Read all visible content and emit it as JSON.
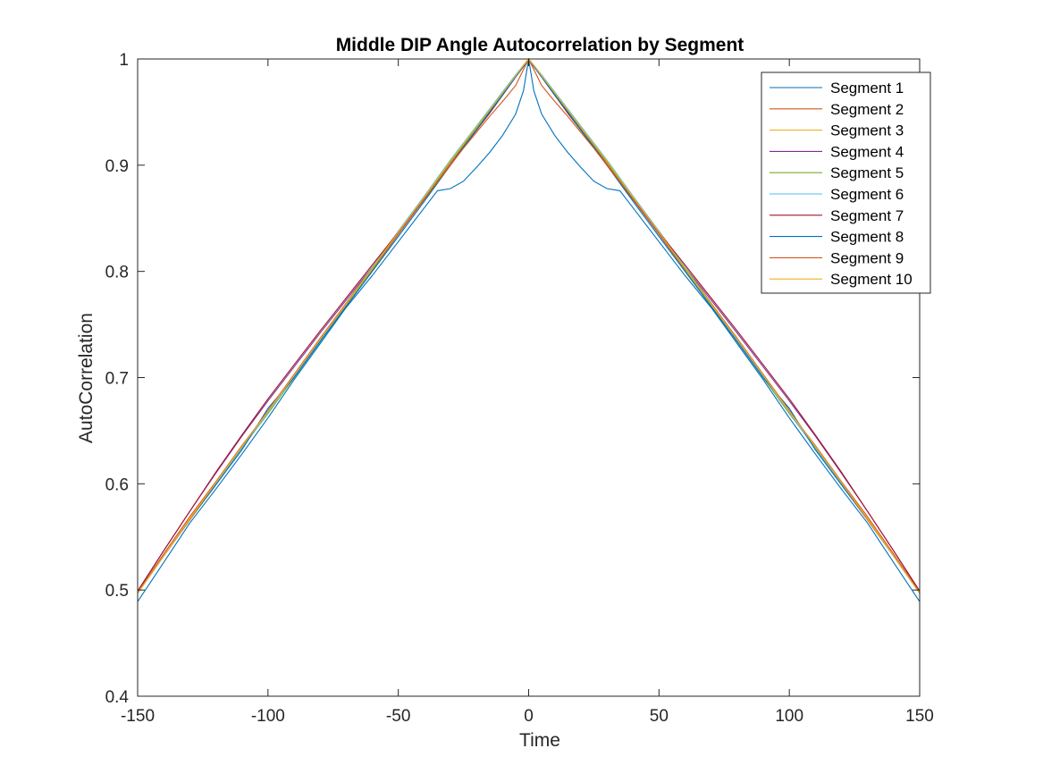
{
  "chart_data": {
    "type": "line",
    "title": "Middle DIP Angle Autocorrelation by Segment",
    "xlabel": "Time",
    "ylabel": "AutoCorrelation",
    "xlim": [
      -150,
      150
    ],
    "ylim": [
      0.4,
      1
    ],
    "xticks": [
      -150,
      -100,
      -50,
      0,
      50,
      100,
      150
    ],
    "yticks": [
      0.4,
      0.5,
      0.6,
      0.7,
      0.8,
      0.9,
      1
    ],
    "xtick_labels": [
      "-150",
      "-100",
      "-50",
      "0",
      "50",
      "100",
      "150"
    ],
    "ytick_labels": [
      "0.4",
      "0.5",
      "0.6",
      "0.7",
      "0.8",
      "0.9",
      "1"
    ],
    "grid": false,
    "legend_position": "top-right",
    "x": [
      -150,
      -140,
      -130,
      -120,
      -110,
      -100,
      -90,
      -80,
      -70,
      -60,
      -50,
      -40,
      -35,
      -30,
      -25,
      -20,
      -15,
      -10,
      -5,
      -2,
      0,
      2,
      5,
      10,
      15,
      20,
      25,
      30,
      35,
      40,
      50,
      60,
      70,
      80,
      90,
      100,
      110,
      120,
      130,
      140,
      150
    ],
    "series": [
      {
        "name": "Segment 1",
        "color": "#0072BD",
        "values": [
          0.489,
          0.526,
          0.563,
          0.595,
          0.628,
          0.662,
          0.698,
          0.732,
          0.766,
          0.796,
          0.828,
          0.86,
          0.876,
          0.878,
          0.885,
          0.898,
          0.912,
          0.928,
          0.948,
          0.97,
          1.0,
          0.97,
          0.948,
          0.928,
          0.912,
          0.898,
          0.885,
          0.878,
          0.876,
          0.86,
          0.828,
          0.796,
          0.766,
          0.732,
          0.698,
          0.662,
          0.628,
          0.595,
          0.563,
          0.526,
          0.489
        ]
      },
      {
        "name": "Segment 2",
        "color": "#D95319",
        "values": [
          0.498,
          0.534,
          0.569,
          0.602,
          0.636,
          0.668,
          0.701,
          0.735,
          0.768,
          0.801,
          0.835,
          0.868,
          0.885,
          0.902,
          0.918,
          0.934,
          0.95,
          0.966,
          0.983,
          0.993,
          1.0,
          0.993,
          0.983,
          0.966,
          0.95,
          0.934,
          0.918,
          0.902,
          0.885,
          0.868,
          0.835,
          0.801,
          0.768,
          0.735,
          0.701,
          0.668,
          0.636,
          0.602,
          0.569,
          0.534,
          0.498
        ]
      },
      {
        "name": "Segment 3",
        "color": "#EDB120",
        "values": [
          0.497,
          0.532,
          0.567,
          0.601,
          0.634,
          0.667,
          0.7,
          0.734,
          0.768,
          0.802,
          0.836,
          0.869,
          0.886,
          0.903,
          0.919,
          0.935,
          0.951,
          0.967,
          0.984,
          0.994,
          1.0,
          0.994,
          0.984,
          0.967,
          0.951,
          0.935,
          0.919,
          0.903,
          0.886,
          0.869,
          0.836,
          0.802,
          0.768,
          0.734,
          0.7,
          0.667,
          0.634,
          0.601,
          0.567,
          0.532,
          0.497
        ]
      },
      {
        "name": "Segment 4",
        "color": "#7E2F8E",
        "values": [
          0.499,
          0.537,
          0.574,
          0.61,
          0.645,
          0.678,
          0.71,
          0.742,
          0.773,
          0.804,
          0.836,
          0.868,
          0.884,
          0.9,
          0.917,
          0.933,
          0.949,
          0.966,
          0.983,
          0.993,
          1.0,
          0.993,
          0.983,
          0.966,
          0.949,
          0.933,
          0.917,
          0.9,
          0.884,
          0.868,
          0.836,
          0.804,
          0.773,
          0.742,
          0.71,
          0.678,
          0.645,
          0.61,
          0.574,
          0.537,
          0.499
        ]
      },
      {
        "name": "Segment 5",
        "color": "#77AC30",
        "values": [
          0.497,
          0.532,
          0.567,
          0.6,
          0.634,
          0.666,
          0.7,
          0.734,
          0.768,
          0.802,
          0.836,
          0.869,
          0.886,
          0.903,
          0.919,
          0.935,
          0.951,
          0.967,
          0.984,
          0.994,
          1.0,
          0.994,
          0.984,
          0.967,
          0.951,
          0.935,
          0.919,
          0.903,
          0.886,
          0.869,
          0.836,
          0.802,
          0.768,
          0.734,
          0.7,
          0.666,
          0.634,
          0.6,
          0.567,
          0.532,
          0.497
        ]
      },
      {
        "name": "Segment 6",
        "color": "#4DBEEE",
        "values": [
          0.498,
          0.532,
          0.566,
          0.6,
          0.633,
          0.667,
          0.701,
          0.735,
          0.77,
          0.804,
          0.838,
          0.871,
          0.888,
          0.905,
          0.921,
          0.937,
          0.953,
          0.969,
          0.985,
          0.994,
          1.0,
          0.994,
          0.985,
          0.969,
          0.953,
          0.937,
          0.921,
          0.905,
          0.888,
          0.871,
          0.838,
          0.804,
          0.77,
          0.735,
          0.701,
          0.667,
          0.633,
          0.6,
          0.566,
          0.532,
          0.498
        ]
      },
      {
        "name": "Segment 7",
        "color": "#A2142F",
        "values": [
          0.499,
          0.537,
          0.574,
          0.611,
          0.646,
          0.68,
          0.712,
          0.744,
          0.775,
          0.806,
          0.837,
          0.868,
          0.884,
          0.9,
          0.917,
          0.933,
          0.949,
          0.966,
          0.983,
          0.993,
          1.0,
          0.993,
          0.983,
          0.966,
          0.949,
          0.933,
          0.917,
          0.9,
          0.884,
          0.868,
          0.837,
          0.806,
          0.775,
          0.744,
          0.712,
          0.68,
          0.646,
          0.611,
          0.574,
          0.537,
          0.499
        ]
      },
      {
        "name": "Segment 8",
        "color": "#0072BD",
        "values": [
          0.497,
          0.532,
          0.566,
          0.599,
          0.632,
          0.671,
          0.7,
          0.734,
          0.767,
          0.8,
          0.833,
          0.866,
          0.883,
          0.9,
          0.917,
          0.933,
          0.95,
          0.966,
          0.983,
          0.993,
          1.0,
          0.993,
          0.983,
          0.966,
          0.95,
          0.933,
          0.917,
          0.9,
          0.883,
          0.866,
          0.833,
          0.8,
          0.767,
          0.734,
          0.7,
          0.671,
          0.632,
          0.599,
          0.566,
          0.532,
          0.497
        ]
      },
      {
        "name": "Segment 9",
        "color": "#D95319",
        "values": [
          0.498,
          0.532,
          0.566,
          0.601,
          0.635,
          0.669,
          0.703,
          0.737,
          0.77,
          0.803,
          0.836,
          0.868,
          0.884,
          0.9,
          0.916,
          0.931,
          0.946,
          0.96,
          0.975,
          0.99,
          1.0,
          0.99,
          0.975,
          0.96,
          0.946,
          0.931,
          0.916,
          0.9,
          0.884,
          0.868,
          0.836,
          0.803,
          0.77,
          0.737,
          0.703,
          0.669,
          0.635,
          0.601,
          0.566,
          0.532,
          0.498
        ]
      },
      {
        "name": "Segment 10",
        "color": "#EDB120",
        "values": [
          0.497,
          0.532,
          0.567,
          0.601,
          0.635,
          0.668,
          0.702,
          0.736,
          0.769,
          0.803,
          0.837,
          0.87,
          0.887,
          0.904,
          0.92,
          0.936,
          0.952,
          0.968,
          0.984,
          0.994,
          1.0,
          0.994,
          0.984,
          0.968,
          0.952,
          0.936,
          0.92,
          0.904,
          0.887,
          0.87,
          0.837,
          0.803,
          0.769,
          0.736,
          0.702,
          0.668,
          0.635,
          0.601,
          0.567,
          0.532,
          0.497
        ]
      }
    ]
  }
}
